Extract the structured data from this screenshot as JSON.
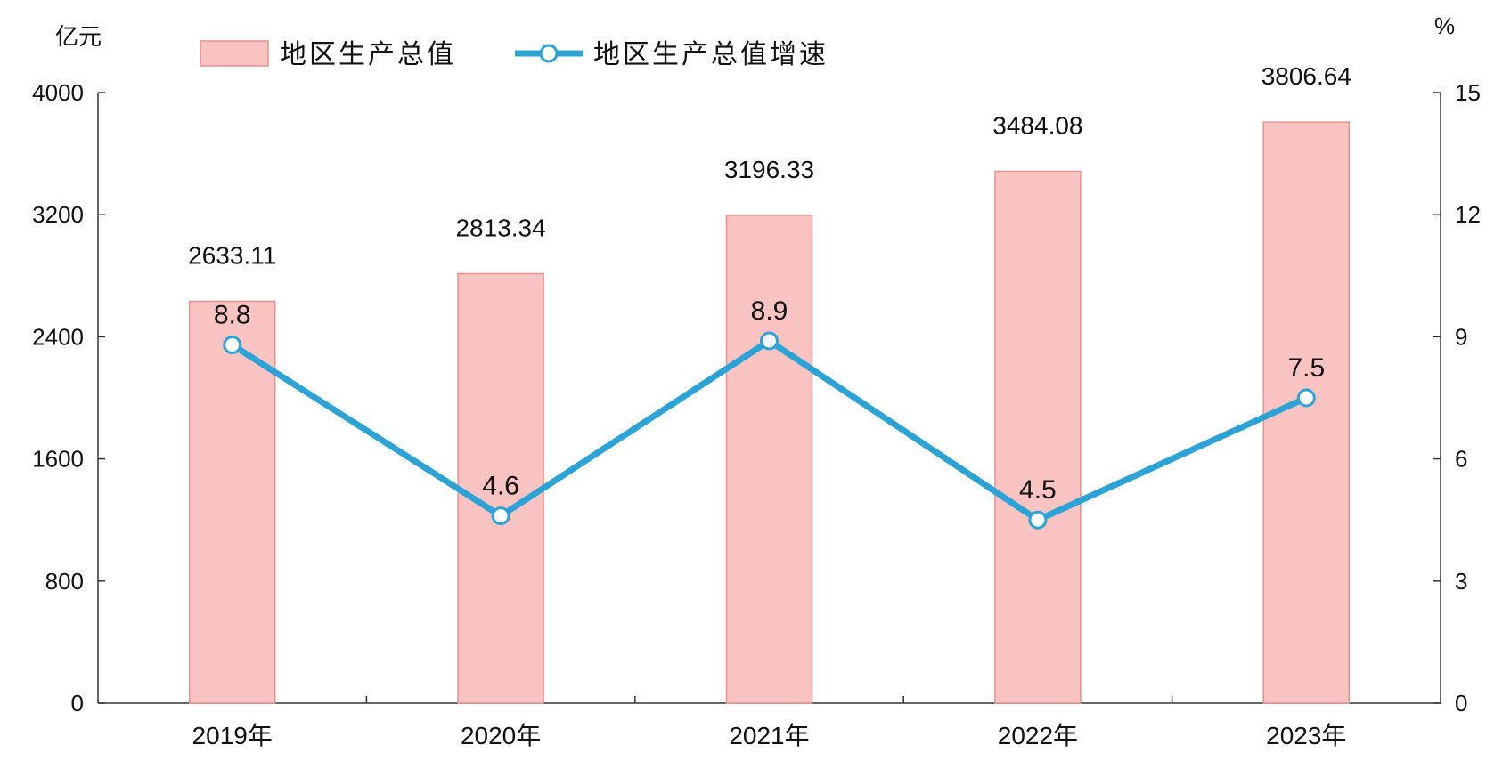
{
  "chart_data": {
    "type": "bar",
    "categories": [
      "2019年",
      "2020年",
      "2021年",
      "2022年",
      "2023年"
    ],
    "series": [
      {
        "name": "地区生产总值",
        "type": "bar",
        "axis": "left",
        "values": [
          2633.11,
          2813.34,
          3196.33,
          3484.08,
          3806.64
        ],
        "labels": [
          "2633.11",
          "2813.34",
          "3196.33",
          "3484.08",
          "3806.64"
        ],
        "color": "#f8c3c1",
        "edge_color": "#e8928f"
      },
      {
        "name": "地区生产总值增速",
        "type": "line",
        "axis": "right",
        "values": [
          8.8,
          4.6,
          8.9,
          4.5,
          7.5
        ],
        "labels": [
          "8.8",
          "4.6",
          "8.9",
          "4.5",
          "7.5"
        ],
        "color": "#2ba3d6"
      }
    ],
    "y_left": {
      "unit": "亿元",
      "range": [
        0,
        4000
      ],
      "ticks": [
        "0",
        "800",
        "1600",
        "2400",
        "3200",
        "4000"
      ]
    },
    "y_right": {
      "unit": "%",
      "range": [
        0,
        15
      ],
      "ticks": [
        "0",
        "3",
        "6",
        "9",
        "12",
        "15"
      ]
    },
    "grid": false,
    "legend_position": "top-left"
  }
}
